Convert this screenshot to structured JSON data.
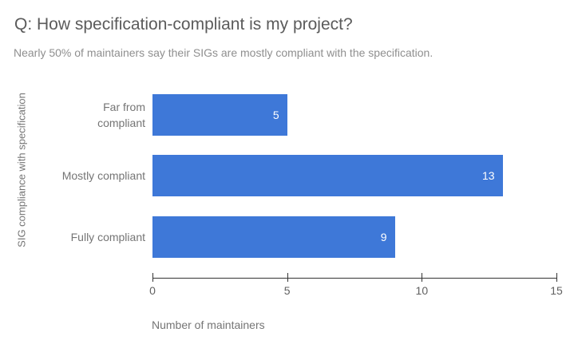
{
  "chart_data": {
    "type": "bar",
    "orientation": "horizontal",
    "title": "Q: How specification-compliant is my project?",
    "subtitle": "Nearly 50% of maintainers say their SIGs are mostly compliant with the specification.",
    "categories": [
      "Far from compliant",
      "Mostly compliant",
      "Fully compliant"
    ],
    "values": [
      5,
      13,
      9
    ],
    "xlabel": "Number of maintainers",
    "ylabel": "SIG compliance with specification",
    "xlim": [
      0,
      15
    ],
    "xticks": [
      0,
      5,
      10,
      15
    ],
    "grid": false,
    "legend": "none",
    "bar_color": "#3e78d8",
    "value_label_color": "#ffffff",
    "title_color": "#5b5b5b",
    "subtitle_color": "#8f8f8f",
    "axis_line_color": "#333333"
  }
}
